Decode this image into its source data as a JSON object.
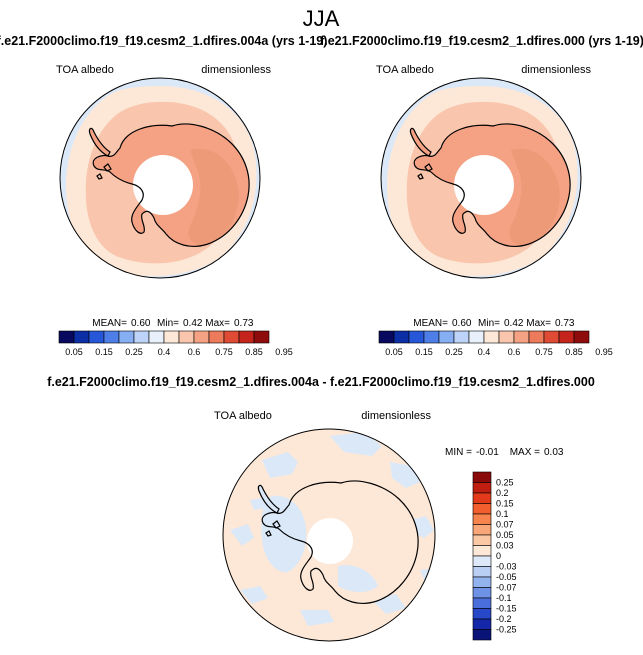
{
  "figure": {
    "title": "JJA"
  },
  "panels": [
    {
      "title": "f.e21.F2000climo.f19_f19.cesm2_1.dfires.004a (yrs 1-19)",
      "left_label": "TOA albedo",
      "right_label": "dimensionless",
      "stats": {
        "mean_label": "MEAN=",
        "mean": "0.60",
        "min_label": "Min=",
        "min": "0.42",
        "max_label": "Max=",
        "max": "0.73"
      },
      "colorbar": {
        "labels": [
          "0.05",
          "0.15",
          "0.25",
          "0.4",
          "0.6",
          "0.75",
          "0.85",
          "0.95"
        ],
        "colors": [
          "#08085e",
          "#0c2fa6",
          "#2557d8",
          "#4e7fe8",
          "#86aef2",
          "#bdd3f7",
          "#e8f1fb",
          "#fde8d8",
          "#f9c6ad",
          "#f4a283",
          "#ec7a5b",
          "#df4b34",
          "#c4241c",
          "#8e0c0c"
        ]
      }
    },
    {
      "title": "f.e21.F2000climo.f19_f19.cesm2_1.dfires.000 (yrs 1-19)",
      "left_label": "TOA albedo",
      "right_label": "dimensionless",
      "stats": {
        "mean_label": "MEAN=",
        "mean": "0.60",
        "min_label": "Min=",
        "min": "0.42",
        "max_label": "Max=",
        "max": "0.73"
      },
      "colorbar": {
        "labels": [
          "0.05",
          "0.15",
          "0.25",
          "0.4",
          "0.6",
          "0.75",
          "0.85",
          "0.95"
        ],
        "colors": [
          "#08085e",
          "#0c2fa6",
          "#2557d8",
          "#4e7fe8",
          "#86aef2",
          "#bdd3f7",
          "#e8f1fb",
          "#fde8d8",
          "#f9c6ad",
          "#f4a283",
          "#ec7a5b",
          "#df4b34",
          "#c4241c",
          "#8e0c0c"
        ]
      }
    },
    {
      "title": "f.e21.F2000climo.f19_f19.cesm2_1.dfires.004a - f.e21.F2000climo.f19_f19.cesm2_1.dfires.000",
      "left_label": "TOA albedo",
      "right_label": "dimensionless",
      "stats": {
        "min_label": "MIN =",
        "min": "-0.01",
        "max_label": "MAX =",
        "max": "0.03"
      },
      "colorbar": {
        "labels": [
          "0.25",
          "0.2",
          "0.15",
          "0.1",
          "0.07",
          "0.05",
          "0.03",
          "0",
          "-0.03",
          "-0.05",
          "-0.07",
          "-0.1",
          "-0.15",
          "-0.2",
          "-0.25"
        ],
        "colors": [
          "#8a0a0a",
          "#c01e10",
          "#e23a1a",
          "#f25e2e",
          "#f7844e",
          "#f9a679",
          "#fbc8a6",
          "#fde7d6",
          "#dde9f9",
          "#b9cff4",
          "#93b3ee",
          "#6d92e6",
          "#4a6fdc",
          "#2748c8",
          "#1427a8",
          "#0a1478"
        ]
      }
    }
  ],
  "colors": {
    "ocean_warm": "#fde8d8",
    "ocean_mid": "#f9c6ad",
    "ice_inner": "#f4a283",
    "ice_plateau": "#ec9a78",
    "ice_west": "#f3ae92",
    "sea_cold": "#dbe8f8",
    "polar_hole": "#ffffff",
    "coast": "#000000"
  }
}
